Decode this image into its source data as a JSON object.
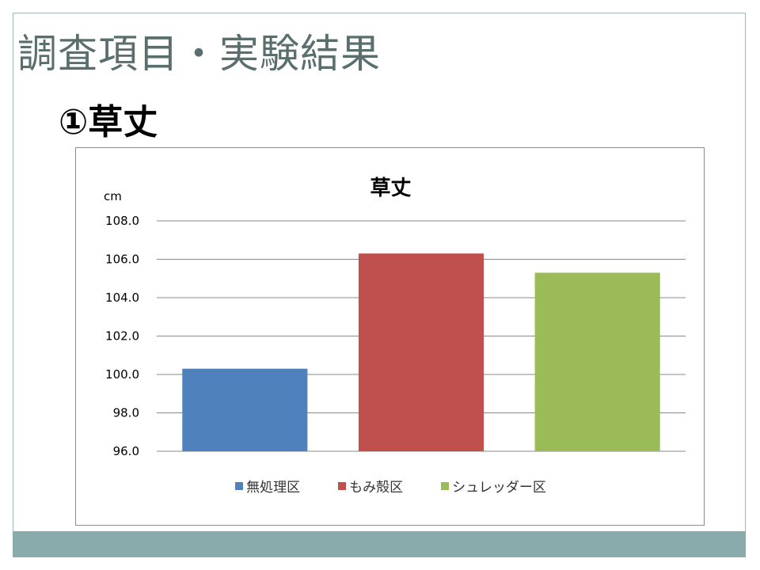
{
  "slide": {
    "title": "調査項目・実験結果",
    "subtitle": "①草丈"
  },
  "chart_data": {
    "type": "bar",
    "title": "草丈",
    "ylabel": "cm",
    "ylim": [
      96.0,
      108.0
    ],
    "yticks": [
      "96.0",
      "98.0",
      "100.0",
      "102.0",
      "104.0",
      "106.0",
      "108.0"
    ],
    "grid": true,
    "legend_position": "bottom",
    "categories": [
      "無処理区",
      "もみ殻区",
      "シュレッダー区"
    ],
    "values": [
      100.3,
      106.3,
      105.3
    ],
    "colors": [
      "#4f81bd",
      "#c0504d",
      "#9bbb59"
    ]
  }
}
